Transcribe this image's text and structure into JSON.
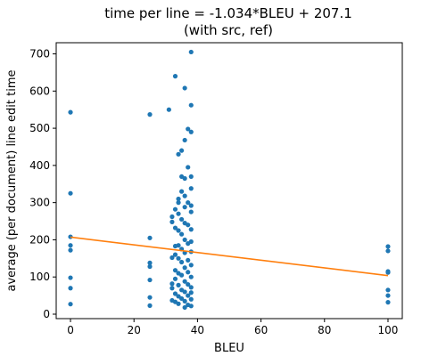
{
  "chart_data": {
    "type": "scatter",
    "title": "time per line = -1.034*BLEU + 207.1",
    "subtitle": "(with src, ref)",
    "xlabel": "BLEU",
    "ylabel": "average (per document) line edit time",
    "xlim": [
      -4.5,
      104.5
    ],
    "ylim": [
      -12,
      730
    ],
    "x_ticks": [
      0,
      20,
      40,
      60,
      80,
      100
    ],
    "y_ticks": [
      0,
      100,
      200,
      300,
      400,
      500,
      600,
      700
    ],
    "grid": false,
    "colors": {
      "points": "#1f77b4",
      "fit_line": "#ff7f0e"
    },
    "fit_line": {
      "slope": -1.034,
      "intercept": 207.1,
      "x_range": [
        0,
        100
      ]
    },
    "points": [
      [
        0,
        543
      ],
      [
        0,
        325
      ],
      [
        0,
        208
      ],
      [
        0,
        185
      ],
      [
        0,
        172
      ],
      [
        0,
        98
      ],
      [
        0,
        70
      ],
      [
        0,
        27
      ],
      [
        25,
        537
      ],
      [
        25,
        205
      ],
      [
        25,
        138
      ],
      [
        25,
        128
      ],
      [
        25,
        92
      ],
      [
        25,
        45
      ],
      [
        25,
        23
      ],
      [
        31,
        550
      ],
      [
        32,
        262
      ],
      [
        32,
        248
      ],
      [
        32,
        152
      ],
      [
        32,
        82
      ],
      [
        32,
        70
      ],
      [
        32,
        37
      ],
      [
        33,
        640
      ],
      [
        33,
        282
      ],
      [
        33,
        232
      ],
      [
        33,
        183
      ],
      [
        33,
        160
      ],
      [
        33,
        118
      ],
      [
        33,
        95
      ],
      [
        33,
        55
      ],
      [
        33,
        33
      ],
      [
        34,
        430
      ],
      [
        34,
        310
      ],
      [
        34,
        300
      ],
      [
        34,
        270
      ],
      [
        34,
        225
      ],
      [
        34,
        185
      ],
      [
        34,
        150
      ],
      [
        34,
        110
      ],
      [
        34,
        78
      ],
      [
        34,
        48
      ],
      [
        34,
        28
      ],
      [
        35,
        440
      ],
      [
        35,
        370
      ],
      [
        35,
        330
      ],
      [
        35,
        255
      ],
      [
        35,
        215
      ],
      [
        35,
        175
      ],
      [
        35,
        140
      ],
      [
        35,
        105
      ],
      [
        35,
        65
      ],
      [
        35,
        42
      ],
      [
        36,
        608
      ],
      [
        36,
        468
      ],
      [
        36,
        365
      ],
      [
        36,
        318
      ],
      [
        36,
        288
      ],
      [
        36,
        245
      ],
      [
        36,
        200
      ],
      [
        36,
        165
      ],
      [
        36,
        125
      ],
      [
        36,
        88
      ],
      [
        36,
        60
      ],
      [
        36,
        35
      ],
      [
        36,
        18
      ],
      [
        37,
        498
      ],
      [
        37,
        395
      ],
      [
        37,
        300
      ],
      [
        37,
        240
      ],
      [
        37,
        190
      ],
      [
        37,
        145
      ],
      [
        37,
        113
      ],
      [
        37,
        80
      ],
      [
        37,
        50
      ],
      [
        37,
        25
      ],
      [
        38,
        705
      ],
      [
        38,
        562
      ],
      [
        38,
        490
      ],
      [
        38,
        370
      ],
      [
        38,
        338
      ],
      [
        38,
        292
      ],
      [
        38,
        275
      ],
      [
        38,
        228
      ],
      [
        38,
        195
      ],
      [
        38,
        168
      ],
      [
        38,
        132
      ],
      [
        38,
        100
      ],
      [
        38,
        72
      ],
      [
        38,
        58
      ],
      [
        38,
        40
      ],
      [
        38,
        22
      ],
      [
        100,
        182
      ],
      [
        100,
        170
      ],
      [
        100,
        115
      ],
      [
        100,
        112
      ],
      [
        100,
        65
      ],
      [
        100,
        50
      ],
      [
        100,
        32
      ]
    ]
  }
}
